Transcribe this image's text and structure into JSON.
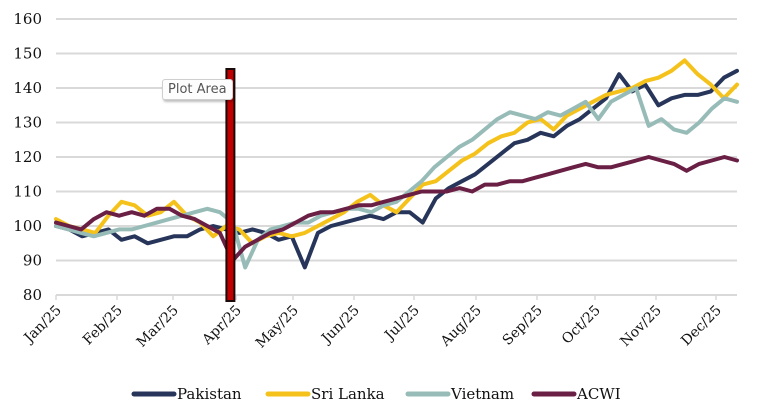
{
  "tooltip": {
    "text": "Plot Area"
  },
  "colors": {
    "pakistan": "#263559",
    "sri_lanka": "#f5c21b",
    "vietnam": "#97bcb8",
    "acwi": "#6a1f45",
    "grid": "#d9d9d9",
    "marker_fill": "#c00000",
    "marker_border": "#1a0a0a"
  },
  "chart_data": {
    "type": "line",
    "title": "",
    "xlabel": "",
    "ylabel": "",
    "ylim": [
      80,
      160
    ],
    "yticks": [
      80,
      90,
      100,
      110,
      120,
      130,
      140,
      150,
      160
    ],
    "ytick_labels": [
      "80",
      "90",
      "100",
      "110",
      "120",
      "130",
      "140",
      "150",
      "160"
    ],
    "xtick_labels": [
      "Jan/25",
      "Feb/25",
      "Mar/25",
      "Apr/25",
      "May/25",
      "Jun/25",
      "Jul/25",
      "Aug/25",
      "Sep/25",
      "Oct/25",
      "Nov/25",
      "Dec/25"
    ],
    "x_unit": "week index (0 = early Jan 2025, 4.35 weeks per month)",
    "xlim": [
      0,
      49.2
    ],
    "grid": true,
    "legend_position": "bottom",
    "vertical_marker": {
      "x": 12.6,
      "label": "Plot Area"
    },
    "series": [
      {
        "name": "Pakistan",
        "key": "pakistan",
        "values": [
          100,
          99,
          97,
          98,
          99,
          96,
          97,
          95,
          96,
          97,
          97,
          99,
          100,
          99,
          98,
          99,
          98,
          96,
          97,
          88,
          98,
          100,
          101,
          102,
          103,
          102,
          104,
          104,
          101,
          108,
          111,
          113,
          115,
          118,
          121,
          124,
          125,
          127,
          126,
          129,
          131,
          134,
          137,
          144,
          139,
          141,
          135,
          137,
          138,
          138,
          139,
          143,
          145
        ]
      },
      {
        "name": "Sri Lanka",
        "key": "sri_lanka",
        "values": [
          102,
          100,
          99,
          98,
          103,
          107,
          106,
          103,
          104,
          107,
          103,
          101,
          97,
          100,
          99,
          95,
          97,
          98,
          97,
          98,
          100,
          102,
          104,
          107,
          109,
          106,
          104,
          108,
          112,
          113,
          116,
          119,
          121,
          124,
          126,
          127,
          130,
          131,
          128,
          132,
          134,
          136,
          138,
          139,
          140,
          142,
          143,
          145,
          148,
          144,
          141,
          137,
          141
        ]
      },
      {
        "name": "Vietnam",
        "key": "vietnam",
        "values": [
          100,
          99,
          98,
          97,
          98,
          99,
          99,
          100,
          101,
          102,
          103,
          104,
          105,
          104,
          101,
          88,
          96,
          99,
          100,
          101,
          101,
          103,
          104,
          105,
          105,
          104,
          106,
          107,
          110,
          113,
          117,
          120,
          123,
          125,
          128,
          131,
          133,
          132,
          131,
          133,
          132,
          134,
          136,
          131,
          136,
          138,
          140,
          129,
          131,
          128,
          127,
          130,
          134,
          137,
          136
        ]
      },
      {
        "name": "ACWI",
        "key": "acwi",
        "values": [
          101,
          100,
          99,
          102,
          104,
          103,
          104,
          103,
          105,
          105,
          103,
          102,
          100,
          98,
          90,
          94,
          96,
          98,
          99,
          101,
          103,
          104,
          104,
          105,
          106,
          106,
          107,
          108,
          109,
          110,
          110,
          110,
          111,
          110,
          112,
          112,
          113,
          113,
          114,
          115,
          116,
          117,
          118,
          117,
          117,
          118,
          119,
          120,
          119,
          118,
          116,
          118,
          119,
          120,
          119
        ]
      }
    ]
  },
  "legend": {
    "items": [
      {
        "label": "Pakistan",
        "key": "pakistan"
      },
      {
        "label": "Sri Lanka",
        "key": "sri_lanka"
      },
      {
        "label": "Vietnam",
        "key": "vietnam"
      },
      {
        "label": "ACWI",
        "key": "acwi"
      }
    ]
  }
}
